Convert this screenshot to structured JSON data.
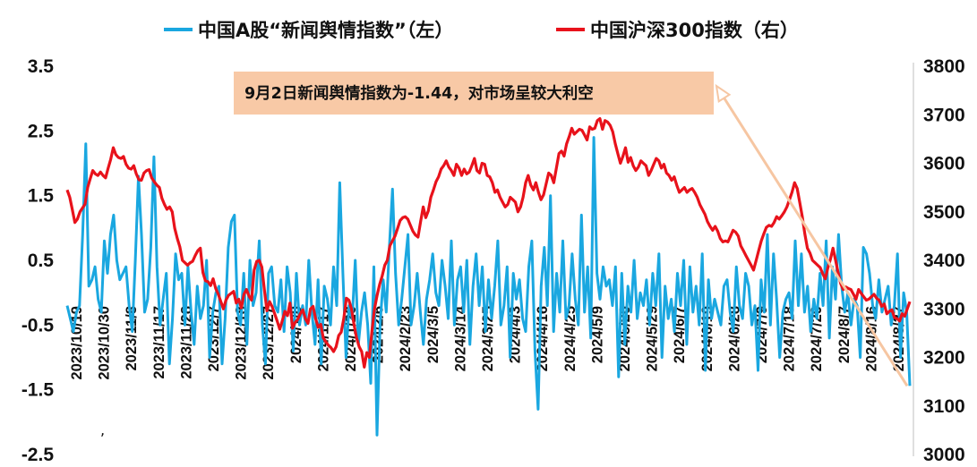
{
  "chart_data": {
    "type": "line",
    "series": [
      {
        "name": "中国A股“新闻舆情指数”（左）",
        "axis": "left",
        "color": "#1aa7e0",
        "values": [
          -0.2,
          -0.4,
          -0.6,
          -0.3,
          -0.2,
          0.9,
          2.3,
          0.1,
          0.2,
          0.4,
          -0.1,
          -0.3,
          0.8,
          0.3,
          0.9,
          1.2,
          0.5,
          0.2,
          0.3,
          0.4,
          -0.2,
          -0.6,
          0.5,
          1.8,
          0.9,
          -0.3,
          -0.1,
          0.7,
          2.1,
          0.4,
          -0.5,
          -0.1,
          0.3,
          -1.1,
          -0.4,
          0.6,
          0.2,
          0.3,
          -0.5,
          0.4,
          -0.3,
          -0.8,
          0.1,
          -0.4,
          -0.2,
          0.5,
          -1.0,
          -0.3,
          0.0,
          0.1,
          -1.1,
          -0.4,
          0.7,
          1.1,
          1.2,
          -0.3,
          -0.5,
          0.3,
          -0.8,
          0.5,
          -0.2,
          0.0,
          0.8,
          -0.5,
          -1.1,
          0.3,
          0.4,
          -0.2,
          -0.3,
          0.2,
          -0.6,
          0.4,
          0.0,
          -0.9,
          0.3,
          -0.5,
          -0.2,
          -0.5,
          0.5,
          -0.3,
          -0.8,
          0.2,
          -1.1,
          0.1,
          -0.1,
          -0.5,
          0.4,
          -0.2,
          1.7,
          0.3,
          -1.0,
          -0.2,
          -0.4,
          0.5,
          -0.8,
          -0.3,
          0.0,
          -0.5,
          -1.4,
          0.4,
          -2.2,
          -0.5,
          0.2,
          -0.3,
          0.7,
          1.6,
          0.3,
          -0.5,
          -0.1,
          0.4,
          0.9,
          -0.5,
          -0.2,
          0.3,
          -0.3,
          -0.8,
          -0.1,
          0.2,
          0.6,
          0.0,
          -0.2,
          0.5,
          0.1,
          -0.4,
          0.8,
          -0.5,
          0.2,
          0.4,
          -0.3,
          0.5,
          -0.8,
          0.1,
          0.6,
          -0.2,
          0.4,
          -0.6,
          0.2,
          -0.4,
          0.1,
          0.8,
          -0.5,
          -0.2,
          0.4,
          -1.0,
          0.3,
          -0.1,
          0.2,
          -0.4,
          -0.6,
          0.4,
          0.8,
          -0.9,
          -1.8,
          0.1,
          0.7,
          -0.2,
          1.5,
          -0.6,
          0.3,
          -0.3,
          0.8,
          -0.4,
          -0.2,
          0.6,
          -0.1,
          -0.5,
          1.2,
          -0.3,
          0.4,
          -0.7,
          2.4,
          0.3,
          -0.1,
          0.4,
          0.1,
          0.2,
          -0.2,
          0.4,
          -1.3,
          0.3,
          -0.8,
          0.1,
          -0.3,
          0.5,
          -0.4,
          0.0,
          -0.2,
          0.2,
          -0.5,
          0.3,
          -0.2,
          0.6,
          -1.0,
          0.1,
          -0.4,
          -0.1,
          -0.6,
          0.3,
          -0.2,
          0.5,
          -0.8,
          0.4,
          -0.3,
          0.1,
          -0.5,
          0.6,
          -1.2,
          0.2,
          -0.4,
          -0.1,
          -0.3,
          -0.5,
          0.1,
          0.2,
          -0.3,
          -0.6,
          0.4,
          -0.2,
          -0.4,
          0.3,
          0.1,
          -0.5,
          -0.2,
          -1.2,
          0.2,
          -0.3,
          0.9,
          -0.5,
          0.6,
          -0.1,
          -1.0,
          -0.3,
          -0.1,
          0.0,
          -0.4,
          0.8,
          -0.2,
          0.6,
          -0.3,
          0.1,
          -0.6,
          -0.1,
          -0.4,
          0.3,
          -0.2,
          0.8,
          -0.7,
          0.4,
          -0.1,
          0.9,
          0.1,
          -0.3,
          0.0,
          -0.5,
          -0.1,
          -0.2,
          -1.0,
          0.7,
          0.6,
          0.3,
          -0.2,
          -0.4,
          0.2,
          -0.3,
          -0.1,
          0.1,
          -0.5,
          -0.2,
          0.6,
          -1.0,
          0.0,
          -0.3,
          -1.44
        ]
      },
      {
        "name": "中国沪深300指数（右）",
        "axis": "right",
        "color": "#e8121b",
        "values": [
          3545,
          3530,
          3505,
          3478,
          3485,
          3500,
          3508,
          3516,
          3550,
          3568,
          3585,
          3578,
          3575,
          3582,
          3575,
          3570,
          3590,
          3608,
          3632,
          3618,
          3612,
          3610,
          3614,
          3598,
          3590,
          3588,
          3595,
          3578,
          3566,
          3565,
          3580,
          3585,
          3587,
          3570,
          3562,
          3555,
          3550,
          3528,
          3515,
          3505,
          3510,
          3500,
          3466,
          3445,
          3428,
          3400,
          3395,
          3390,
          3395,
          3398,
          3410,
          3420,
          3425,
          3375,
          3358,
          3356,
          3348,
          3362,
          3342,
          3330,
          3315,
          3300,
          3318,
          3328,
          3332,
          3336,
          3312,
          3320,
          3302,
          3330,
          3340,
          3326,
          3318,
          3380,
          3398,
          3400,
          3386,
          3340,
          3296,
          3315,
          3305,
          3290,
          3275,
          3258,
          3276,
          3295,
          3286,
          3312,
          3260,
          3272,
          3278,
          3290,
          3298,
          3280,
          3270,
          3300,
          3305,
          3280,
          3262,
          3268,
          3240,
          3232,
          3225,
          3220,
          3212,
          3222,
          3245,
          3252,
          3280,
          3322,
          3318,
          3300,
          3268,
          3240,
          3222,
          3212,
          3180,
          3210,
          3200,
          3255,
          3300,
          3328,
          3350,
          3368,
          3390,
          3400,
          3430,
          3440,
          3450,
          3466,
          3482,
          3488,
          3490,
          3485,
          3472,
          3460,
          3452,
          3448,
          3480,
          3510,
          3488,
          3502,
          3530,
          3545,
          3562,
          3572,
          3588,
          3595,
          3605,
          3592,
          3585,
          3575,
          3598,
          3590,
          3575,
          3588,
          3578,
          3582,
          3595,
          3610,
          3585,
          3580,
          3600,
          3598,
          3575,
          3572,
          3560,
          3540,
          3545,
          3530,
          3520,
          3510,
          3515,
          3530,
          3525,
          3520,
          3500,
          3510,
          3530,
          3560,
          3575,
          3555,
          3545,
          3560,
          3540,
          3525,
          3535,
          3558,
          3580,
          3575,
          3560,
          3590,
          3620,
          3625,
          3615,
          3640,
          3655,
          3672,
          3660,
          3665,
          3670,
          3668,
          3658,
          3648,
          3675,
          3670,
          3672,
          3688,
          3692,
          3670,
          3688,
          3685,
          3678,
          3665,
          3640,
          3620,
          3600,
          3615,
          3632,
          3602,
          3612,
          3595,
          3585,
          3592,
          3605,
          3600,
          3595,
          3575,
          3585,
          3598,
          3610,
          3605,
          3590,
          3598,
          3580,
          3575,
          3565,
          3572,
          3555,
          3540,
          3545,
          3550,
          3540,
          3545,
          3548,
          3540,
          3530,
          3515,
          3505,
          3495,
          3480,
          3470,
          3462,
          3470,
          3460,
          3445,
          3438,
          3440,
          3438,
          3450,
          3462,
          3458,
          3450,
          3430,
          3420,
          3410,
          3400,
          3390,
          3380,
          3400,
          3420,
          3440,
          3455,
          3468,
          3472,
          3470,
          3478,
          3490,
          3485,
          3492,
          3500,
          3510,
          3525,
          3540,
          3560,
          3548,
          3520,
          3490,
          3455,
          3425,
          3415,
          3400,
          3395,
          3390,
          3385,
          3372,
          3362,
          3385,
          3402,
          3425,
          3400,
          3375,
          3352,
          3340,
          3345,
          3342,
          3340,
          3330,
          3320,
          3340,
          3332,
          3325,
          3318,
          3320,
          3325,
          3330,
          3322,
          3318,
          3305,
          3310,
          3290,
          3295,
          3298,
          3282,
          3280,
          3275,
          3290,
          3285,
          3300,
          3315
        ]
      }
    ],
    "x_tick_labels": [
      "2023/10/19",
      "2023/10/30",
      "2023/11/8",
      "2023/11/17",
      "2023/11/28",
      "2023/12/7",
      "2023/12/18",
      "2023/12/27",
      "2024/1/8",
      "2024/1/17",
      "2024/1/26",
      "2024/2/6",
      "2024/2/23",
      "2024/3/5",
      "2024/3/14",
      "2024/3/25",
      "2024/4/3",
      "2024/4/16",
      "2024/4/25",
      "2024/5/9",
      "2024/5/20",
      "2024/5/29",
      "2024/6/7",
      "2024/6/19",
      "2024/6/28",
      "2024/7/9",
      "2024/7/18",
      "2024/7/29",
      "2024/8/7",
      "2024/8/16",
      "2024/8/27"
    ],
    "y_left": {
      "ticks": [
        "3.5",
        "2.5",
        "1.5",
        "0.5",
        "-0.5",
        "-1.5",
        "-2.5"
      ],
      "range": [
        -2.5,
        3.5
      ]
    },
    "y_right": {
      "ticks": [
        "3800",
        "3700",
        "3600",
        "3500",
        "3400",
        "3300",
        "3200",
        "3100",
        "3000"
      ],
      "range": [
        3000,
        3800
      ]
    },
    "grid": false,
    "legend_position": "top",
    "annotation": {
      "text": "9月2日新闻舆情指数为-1.44，对市场呈较大利空",
      "box_color": "#f8c9a6",
      "arrow_color": "#f6c6a2"
    },
    "stray_mark": ","
  },
  "legend": {
    "items": [
      {
        "label": "中国A股“新闻舆情指数”（左）",
        "color": "#1aa7e0"
      },
      {
        "label": "中国沪深300指数（右）",
        "color": "#e8121b"
      }
    ]
  }
}
